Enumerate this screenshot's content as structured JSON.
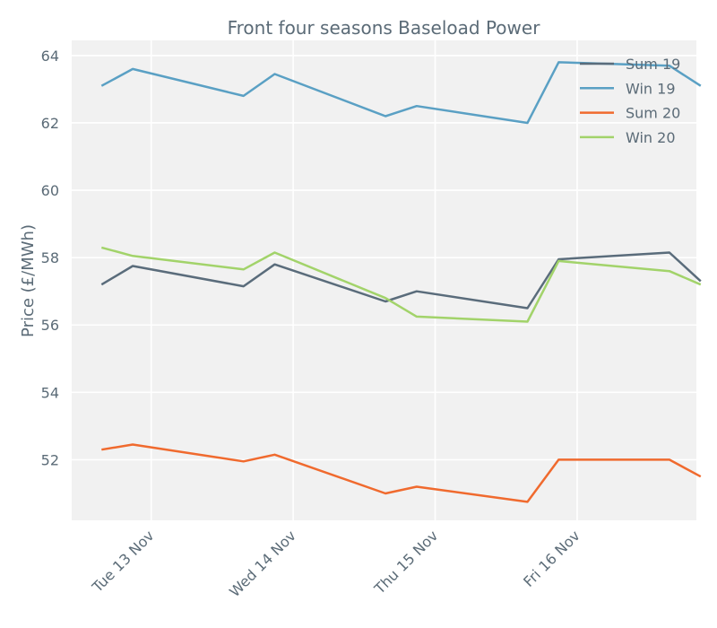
{
  "chart_data": {
    "type": "line",
    "title": "Front four seasons Baseload Power",
    "xlabel": "",
    "ylabel": "Price (£/MWh)",
    "ylim": [
      50.2,
      64.45
    ],
    "xlim": [
      0,
      4.4
    ],
    "yticks": [
      52,
      54,
      56,
      58,
      60,
      62,
      64
    ],
    "xticks": [
      {
        "value": 0.56,
        "label": "Tue 13 Nov"
      },
      {
        "value": 1.56,
        "label": "Wed 14 Nov"
      },
      {
        "value": 2.56,
        "label": "Thu 15 Nov"
      },
      {
        "value": 3.56,
        "label": "Fri 16 Nov"
      }
    ],
    "grid": true,
    "legend_position": "top-right",
    "x": [
      0.21,
      0.43,
      1.21,
      1.43,
      2.21,
      2.43,
      3.21,
      3.43,
      4.21,
      4.43
    ],
    "series": [
      {
        "name": "Sum 19",
        "color": "#5a6c7b",
        "values": [
          57.2,
          57.75,
          57.15,
          57.8,
          56.7,
          57.0,
          56.5,
          57.95,
          58.15,
          57.3
        ]
      },
      {
        "name": "Win 19",
        "color": "#5aa0c4",
        "values": [
          63.1,
          63.6,
          62.8,
          63.45,
          62.2,
          62.5,
          62.0,
          63.8,
          63.7,
          63.1
        ]
      },
      {
        "name": "Sum 20",
        "color": "#f06a2e",
        "values": [
          52.3,
          52.45,
          51.95,
          52.15,
          51.0,
          51.2,
          50.75,
          52.0,
          52.0,
          51.5
        ]
      },
      {
        "name": "Win 20",
        "color": "#a2d36a",
        "values": [
          58.3,
          58.05,
          57.65,
          58.15,
          56.8,
          56.25,
          56.1,
          57.9,
          57.6,
          57.2
        ]
      }
    ]
  }
}
